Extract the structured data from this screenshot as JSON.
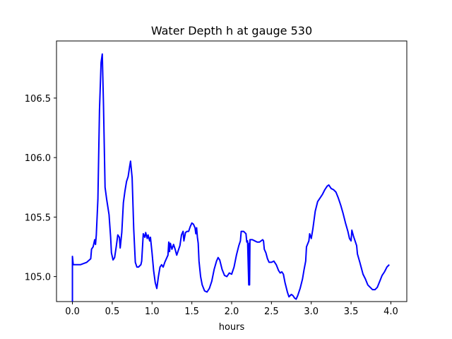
{
  "chart_data": {
    "type": "line",
    "title": "Water Depth h at gauge 530",
    "xlabel": "hours",
    "ylabel": "",
    "xlim": [
      -0.2,
      4.2
    ],
    "ylim": [
      104.79,
      106.98
    ],
    "grid": false,
    "legend": "none",
    "x_ticks": [
      {
        "value": 0.0,
        "label": "0.0"
      },
      {
        "value": 0.5,
        "label": "0.5"
      },
      {
        "value": 1.0,
        "label": "1.0"
      },
      {
        "value": 1.5,
        "label": "1.5"
      },
      {
        "value": 2.0,
        "label": "2.0"
      },
      {
        "value": 2.5,
        "label": "2.5"
      },
      {
        "value": 3.0,
        "label": "3.0"
      },
      {
        "value": 3.5,
        "label": "3.5"
      },
      {
        "value": 4.0,
        "label": "4.0"
      }
    ],
    "y_ticks": [
      {
        "value": 105.0,
        "label": "105.0"
      },
      {
        "value": 105.5,
        "label": "105.5"
      },
      {
        "value": 106.0,
        "label": "106.0"
      },
      {
        "value": 106.5,
        "label": "106.5"
      }
    ],
    "series": [
      {
        "color": "#0000ff",
        "points": [
          [
            0.0,
            104.79
          ],
          [
            0.0,
            105.17
          ],
          [
            0.01,
            105.1
          ],
          [
            0.1,
            105.1
          ],
          [
            0.18,
            105.12
          ],
          [
            0.23,
            105.15
          ],
          [
            0.24,
            105.23
          ],
          [
            0.26,
            105.25
          ],
          [
            0.28,
            105.31
          ],
          [
            0.29,
            105.27
          ],
          [
            0.3,
            105.35
          ],
          [
            0.32,
            105.65
          ],
          [
            0.34,
            106.4
          ],
          [
            0.36,
            106.8
          ],
          [
            0.375,
            106.87
          ],
          [
            0.39,
            106.45
          ],
          [
            0.41,
            105.75
          ],
          [
            0.43,
            105.65
          ],
          [
            0.46,
            105.52
          ],
          [
            0.48,
            105.33
          ],
          [
            0.49,
            105.2
          ],
          [
            0.51,
            105.14
          ],
          [
            0.53,
            105.16
          ],
          [
            0.55,
            105.25
          ],
          [
            0.57,
            105.35
          ],
          [
            0.59,
            105.33
          ],
          [
            0.6,
            105.24
          ],
          [
            0.62,
            105.37
          ],
          [
            0.64,
            105.62
          ],
          [
            0.66,
            105.72
          ],
          [
            0.68,
            105.8
          ],
          [
            0.7,
            105.84
          ],
          [
            0.72,
            105.93
          ],
          [
            0.73,
            105.97
          ],
          [
            0.75,
            105.83
          ],
          [
            0.77,
            105.4
          ],
          [
            0.79,
            105.12
          ],
          [
            0.81,
            105.08
          ],
          [
            0.83,
            105.08
          ],
          [
            0.86,
            105.1
          ],
          [
            0.87,
            105.13
          ],
          [
            0.89,
            105.36
          ],
          [
            0.91,
            105.33
          ],
          [
            0.92,
            105.37
          ],
          [
            0.94,
            105.32
          ],
          [
            0.95,
            105.35
          ],
          [
            0.97,
            105.3
          ],
          [
            0.98,
            105.33
          ],
          [
            1.0,
            105.2
          ],
          [
            1.02,
            105.05
          ],
          [
            1.04,
            104.95
          ],
          [
            1.06,
            104.9
          ],
          [
            1.08,
            105.0
          ],
          [
            1.1,
            105.08
          ],
          [
            1.12,
            105.1
          ],
          [
            1.14,
            105.08
          ],
          [
            1.16,
            105.12
          ],
          [
            1.18,
            105.15
          ],
          [
            1.2,
            105.18
          ],
          [
            1.21,
            105.29
          ],
          [
            1.22,
            105.21
          ],
          [
            1.23,
            105.28
          ],
          [
            1.25,
            105.23
          ],
          [
            1.27,
            105.27
          ],
          [
            1.29,
            105.23
          ],
          [
            1.31,
            105.18
          ],
          [
            1.33,
            105.22
          ],
          [
            1.35,
            105.26
          ],
          [
            1.37,
            105.35
          ],
          [
            1.39,
            105.38
          ],
          [
            1.4,
            105.3
          ],
          [
            1.42,
            105.37
          ],
          [
            1.44,
            105.38
          ],
          [
            1.46,
            105.38
          ],
          [
            1.48,
            105.42
          ],
          [
            1.5,
            105.45
          ],
          [
            1.52,
            105.44
          ],
          [
            1.54,
            105.41
          ],
          [
            1.55,
            105.36
          ],
          [
            1.56,
            105.41
          ],
          [
            1.57,
            105.33
          ],
          [
            1.58,
            105.28
          ],
          [
            1.59,
            105.13
          ],
          [
            1.61,
            105.0
          ],
          [
            1.63,
            104.93
          ],
          [
            1.66,
            104.88
          ],
          [
            1.69,
            104.87
          ],
          [
            1.72,
            104.9
          ],
          [
            1.75,
            104.96
          ],
          [
            1.78,
            105.06
          ],
          [
            1.81,
            105.13
          ],
          [
            1.83,
            105.16
          ],
          [
            1.85,
            105.14
          ],
          [
            1.88,
            105.06
          ],
          [
            1.91,
            105.01
          ],
          [
            1.94,
            105.0
          ],
          [
            1.97,
            105.03
          ],
          [
            2.0,
            105.02
          ],
          [
            2.03,
            105.08
          ],
          [
            2.06,
            105.18
          ],
          [
            2.09,
            105.26
          ],
          [
            2.11,
            105.3
          ],
          [
            2.12,
            105.38
          ],
          [
            2.15,
            105.38
          ],
          [
            2.18,
            105.36
          ],
          [
            2.19,
            105.29
          ],
          [
            2.2,
            105.3
          ],
          [
            2.215,
            104.93
          ],
          [
            2.22,
            105.28
          ],
          [
            2.225,
            104.93
          ],
          [
            2.23,
            105.31
          ],
          [
            2.26,
            105.31
          ],
          [
            2.29,
            105.3
          ],
          [
            2.32,
            105.29
          ],
          [
            2.35,
            105.29
          ],
          [
            2.37,
            105.3
          ],
          [
            2.39,
            105.31
          ],
          [
            2.4,
            105.3
          ],
          [
            2.41,
            105.23
          ],
          [
            2.43,
            105.2
          ],
          [
            2.45,
            105.15
          ],
          [
            2.47,
            105.12
          ],
          [
            2.5,
            105.12
          ],
          [
            2.53,
            105.13
          ],
          [
            2.56,
            105.1
          ],
          [
            2.59,
            105.05
          ],
          [
            2.61,
            105.03
          ],
          [
            2.63,
            105.04
          ],
          [
            2.65,
            105.02
          ],
          [
            2.67,
            104.95
          ],
          [
            2.7,
            104.87
          ],
          [
            2.72,
            104.83
          ],
          [
            2.75,
            104.85
          ],
          [
            2.77,
            104.84
          ],
          [
            2.79,
            104.82
          ],
          [
            2.81,
            104.81
          ],
          [
            2.83,
            104.84
          ],
          [
            2.86,
            104.9
          ],
          [
            2.89,
            104.98
          ],
          [
            2.91,
            105.06
          ],
          [
            2.93,
            105.13
          ],
          [
            2.94,
            105.25
          ],
          [
            2.97,
            105.3
          ],
          [
            2.98,
            105.36
          ],
          [
            3.0,
            105.32
          ],
          [
            3.02,
            105.4
          ],
          [
            3.05,
            105.55
          ],
          [
            3.08,
            105.63
          ],
          [
            3.11,
            105.66
          ],
          [
            3.14,
            105.69
          ],
          [
            3.17,
            105.73
          ],
          [
            3.2,
            105.76
          ],
          [
            3.22,
            105.77
          ],
          [
            3.25,
            105.74
          ],
          [
            3.28,
            105.73
          ],
          [
            3.31,
            105.71
          ],
          [
            3.34,
            105.66
          ],
          [
            3.37,
            105.6
          ],
          [
            3.4,
            105.53
          ],
          [
            3.43,
            105.45
          ],
          [
            3.46,
            105.38
          ],
          [
            3.48,
            105.32
          ],
          [
            3.5,
            105.3
          ],
          [
            3.51,
            105.39
          ],
          [
            3.53,
            105.34
          ],
          [
            3.55,
            105.3
          ],
          [
            3.57,
            105.26
          ],
          [
            3.58,
            105.19
          ],
          [
            3.61,
            105.12
          ],
          [
            3.63,
            105.07
          ],
          [
            3.65,
            105.02
          ],
          [
            3.68,
            104.98
          ],
          [
            3.71,
            104.93
          ],
          [
            3.74,
            104.91
          ],
          [
            3.77,
            104.89
          ],
          [
            3.8,
            104.89
          ],
          [
            3.83,
            104.91
          ],
          [
            3.86,
            104.96
          ],
          [
            3.89,
            105.01
          ],
          [
            3.92,
            105.04
          ],
          [
            3.95,
            105.08
          ],
          [
            3.98,
            105.1
          ]
        ]
      }
    ]
  }
}
